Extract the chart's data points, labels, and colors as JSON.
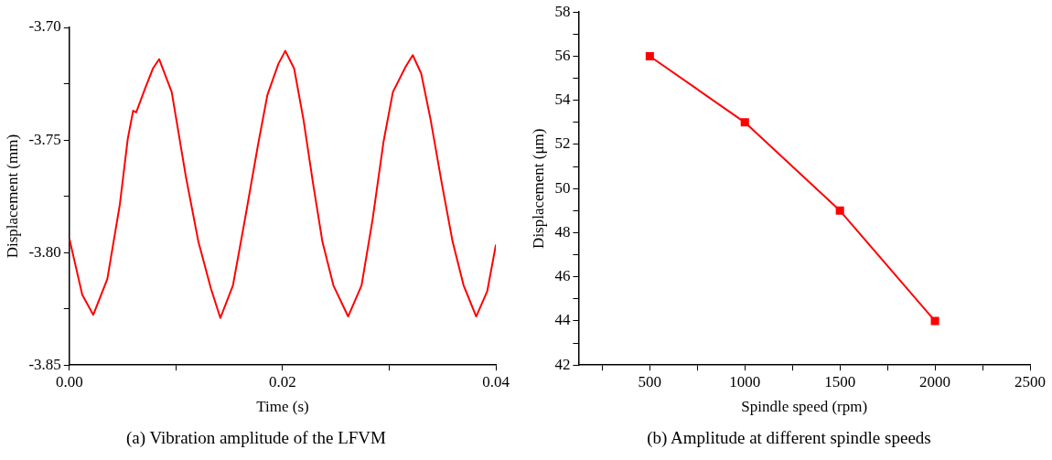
{
  "chart_data": [
    {
      "type": "line",
      "xlabel": "Time (s)",
      "ylabel": "Displacement (mm)",
      "annotations": [
        "(a) Vibration amplitude of the LFVM"
      ],
      "marker": "none",
      "grid": false,
      "xlim": [
        0,
        0.04
      ],
      "xticks": [
        {
          "value": 0,
          "label": "0.00"
        },
        {
          "value": 0.01,
          "label": null
        },
        {
          "value": 0.02,
          "label": "0.02"
        },
        {
          "value": 0.03,
          "label": null
        },
        {
          "value": 0.04,
          "label": "0.04"
        }
      ],
      "ylim": [
        -3.85,
        -3.7
      ],
      "yticks": [
        {
          "value": -3.85,
          "label": "-3.85"
        },
        {
          "value": -3.825,
          "label": null
        },
        {
          "value": -3.8,
          "label": "-3.80"
        },
        {
          "value": -3.775,
          "label": null
        },
        {
          "value": -3.75,
          "label": "-3.75"
        },
        {
          "value": -3.725,
          "label": null
        },
        {
          "value": -3.7,
          "label": "-3.70"
        }
      ],
      "series": [
        {
          "color": "#ff0000",
          "x": [
            0,
            0.00121,
            0.00224,
            0.00356,
            0.00474,
            0.00548,
            0.00598,
            0.00627,
            0.00709,
            0.00783,
            0.00842,
            0.0096,
            0.01092,
            0.0121,
            0.01327,
            0.01416,
            0.01534,
            0.01651,
            0.01769,
            0.01857,
            0.0196,
            0.02025,
            0.02108,
            0.02196,
            0.02284,
            0.02373,
            0.02476,
            0.02614,
            0.0274,
            0.02843,
            0.02946,
            0.03034,
            0.03152,
            0.0322,
            0.03299,
            0.03388,
            0.03491,
            0.03594,
            0.03697,
            0.03815,
            0.03918,
            0.04
          ],
          "values": [
            -3.7938,
            -3.8187,
            -3.8277,
            -3.8118,
            -3.7785,
            -3.7494,
            -3.737,
            -3.7377,
            -3.7273,
            -3.7183,
            -3.7141,
            -3.7287,
            -3.7661,
            -3.7952,
            -3.8159,
            -3.8291,
            -3.8146,
            -3.7841,
            -3.7522,
            -3.73,
            -3.7162,
            -3.7104,
            -3.7183,
            -3.7411,
            -3.7689,
            -3.7952,
            -3.8146,
            -3.8284,
            -3.8146,
            -3.7855,
            -3.7508,
            -3.7287,
            -3.7176,
            -3.7123,
            -3.7204,
            -3.7411,
            -3.7689,
            -3.7952,
            -3.8146,
            -3.8284,
            -3.8173,
            -3.7965
          ]
        }
      ]
    },
    {
      "type": "line",
      "xlabel": "Spindle speed (rpm)",
      "ylabel": "Displacement (μm)",
      "annotations": [
        "(b) Amplitude at different spindle speeds"
      ],
      "marker": "square",
      "grid": false,
      "xlim": [
        125,
        2500
      ],
      "xticks": [
        {
          "value": 250,
          "label": null
        },
        500,
        {
          "value": 750,
          "label": null
        },
        1000,
        {
          "value": 1250,
          "label": null
        },
        1500,
        {
          "value": 1750,
          "label": null
        },
        2000,
        {
          "value": 2250,
          "label": null
        },
        2500
      ],
      "ylim": [
        42,
        58
      ],
      "yticks": [
        42,
        {
          "value": 43,
          "label": null
        },
        44,
        {
          "value": 45,
          "label": null
        },
        46,
        {
          "value": 47,
          "label": null
        },
        48,
        {
          "value": 49,
          "label": null
        },
        50,
        {
          "value": 51,
          "label": null
        },
        52,
        {
          "value": 53,
          "label": null
        },
        54,
        {
          "value": 55,
          "label": null
        },
        56,
        {
          "value": 57,
          "label": null
        },
        58
      ],
      "series": [
        {
          "color": "#ff0000",
          "x": [
            500,
            1000,
            1500,
            2000
          ],
          "values": [
            56,
            53,
            49,
            44
          ]
        }
      ]
    }
  ]
}
